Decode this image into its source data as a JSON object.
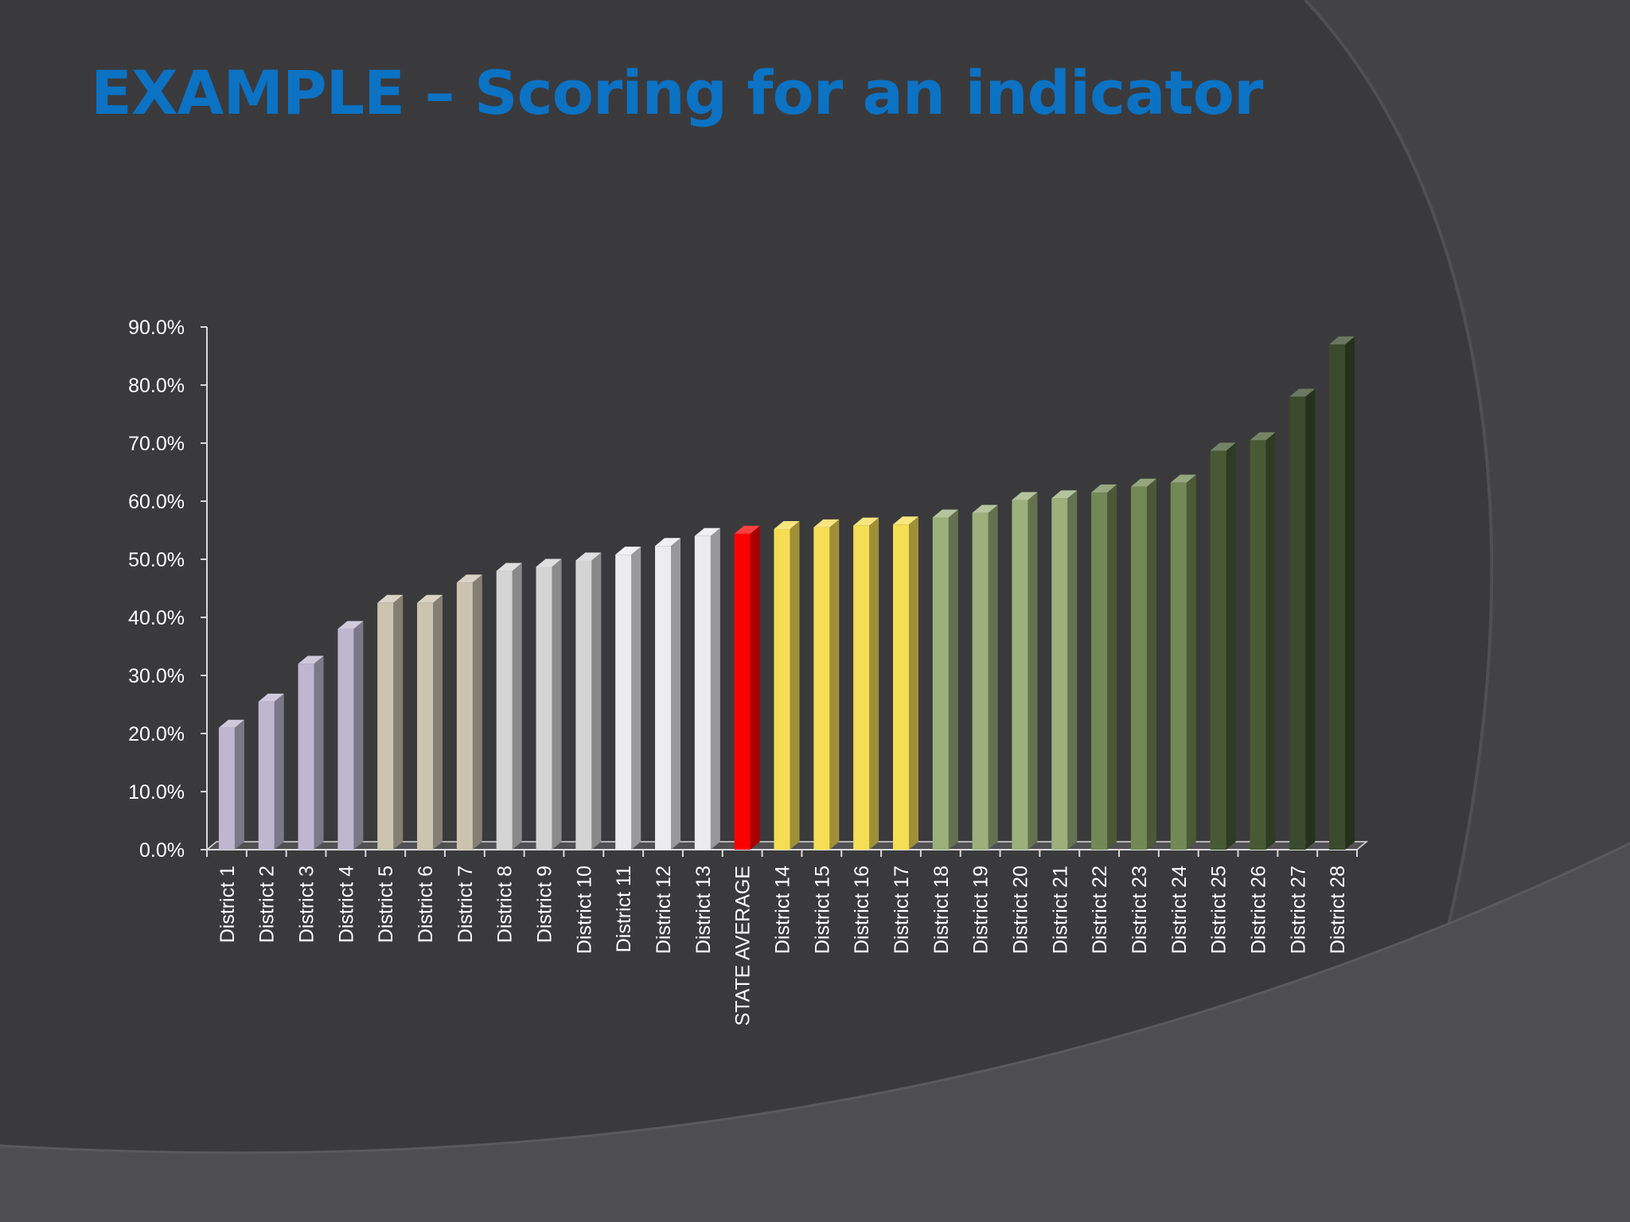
{
  "slide": {
    "title": "EXAMPLE – Scoring for an indicator"
  },
  "colors": {
    "background": "#3a3a3c",
    "title": "#0b72c4",
    "axis": "#d9d9d9",
    "text": "#ffffff"
  },
  "chart_data": {
    "type": "bar",
    "style": "3d-columns",
    "title": "",
    "xlabel": "",
    "ylabel": "",
    "ylim": [
      0,
      90
    ],
    "y_ticks": [
      "0.0%",
      "10.0%",
      "20.0%",
      "30.0%",
      "40.0%",
      "50.0%",
      "60.0%",
      "70.0%",
      "80.0%",
      "90.0%"
    ],
    "y_tick_values": [
      0,
      10,
      20,
      30,
      40,
      50,
      60,
      70,
      80,
      90
    ],
    "value_unit": "percent",
    "legend": "none",
    "grid": false,
    "categories": [
      "District 1",
      "District 2",
      "District 3",
      "District 4",
      "District 5",
      "District 6",
      "District 7",
      "District 8",
      "District 9",
      "District 10",
      "District 11",
      "District 12",
      "District 13",
      "STATE AVERAGE",
      "District 14",
      "District 15",
      "District 16",
      "District 17",
      "District 18",
      "District 19",
      "District 20",
      "District 21",
      "District 22",
      "District 23",
      "District 24",
      "District 25",
      "District 26",
      "District 27",
      "District 28"
    ],
    "values": [
      21.0,
      25.5,
      32.0,
      38.0,
      42.5,
      42.5,
      46.0,
      48.0,
      48.7,
      49.8,
      50.8,
      52.3,
      54.0,
      54.4,
      55.2,
      55.5,
      55.8,
      56.0,
      57.2,
      58.0,
      60.2,
      60.5,
      61.5,
      62.5,
      63.2,
      68.7,
      70.5,
      78.0,
      87.0
    ],
    "bar_colors": [
      "#bdb8d0",
      "#bdb8d0",
      "#bdb8d0",
      "#bdb8d0",
      "#cbc4b0",
      "#cbc4b0",
      "#cbc4b0",
      "#d4d4d4",
      "#d4d4d4",
      "#d4d4d4",
      "#ecebf0",
      "#ecebf0",
      "#ecebf0",
      "#ff0000",
      "#f5de54",
      "#f5de54",
      "#f5de54",
      "#f5de54",
      "#9cb07c",
      "#9cb07c",
      "#9cb07c",
      "#9cb07c",
      "#738955",
      "#738955",
      "#738955",
      "#475a34",
      "#475a34",
      "#3a4a2c",
      "#3a4a2c"
    ]
  }
}
